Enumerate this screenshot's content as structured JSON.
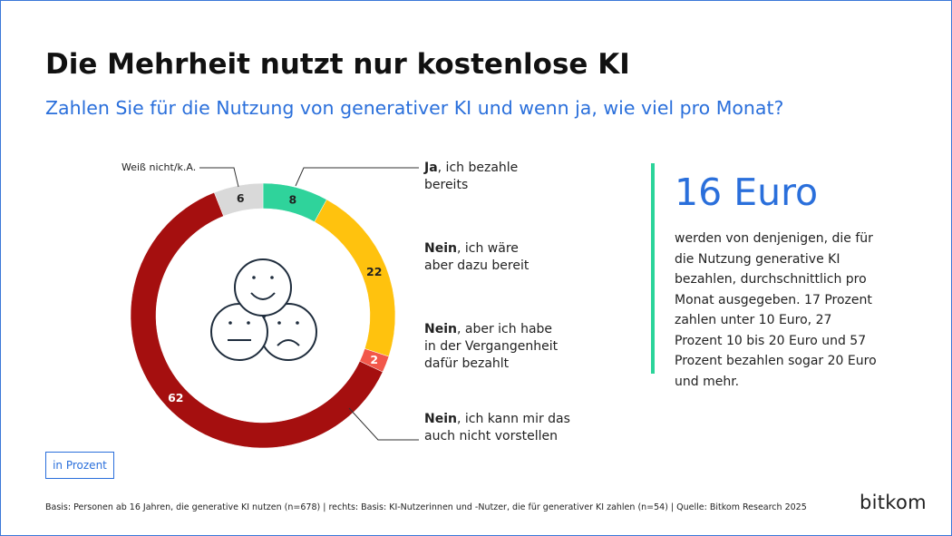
{
  "header": {
    "title": "Die Mehrheit nutzt nur kostenlose KI",
    "subtitle": "Zahlen Sie für die Nutzung von generativer KI und wenn ja, wie viel pro Monat?"
  },
  "chart_data": {
    "type": "pie",
    "variant": "donut",
    "unit": "in Prozent",
    "slices": [
      {
        "label_bold": "Ja",
        "label_rest": ", ich bezahle bereits",
        "value": 8,
        "color": "#2fd39b"
      },
      {
        "label_bold": "Nein",
        "label_rest": ", ich wäre aber dazu bereit",
        "value": 22,
        "color": "#ffc20e"
      },
      {
        "label_bold": "Nein",
        "label_rest": ", aber ich habe in der Vergangenheit dafür bezahlt",
        "value": 2,
        "color": "#f2574a"
      },
      {
        "label_bold": "Nein",
        "label_rest": ", ich kann mir das auch nicht vorstellen",
        "value": 62,
        "color": "#a50f0f"
      },
      {
        "label_bold": "",
        "label_rest": "Weiß nicht/k.A.",
        "value": 6,
        "color": "#d9d9d9"
      }
    ]
  },
  "labels": {
    "ja_bold": "Ja",
    "ja_rest_1": ", ich bezahle",
    "ja_rest_2": "bereits",
    "nein1_bold": "Nein",
    "nein1_rest_1": ", ich wäre",
    "nein1_rest_2": "aber dazu bereit",
    "nein2_bold": "Nein",
    "nein2_rest_1": ", aber ich habe",
    "nein2_rest_2": "in der Vergangenheit",
    "nein2_rest_3": "dafür bezahlt",
    "nein3_bold": "Nein",
    "nein3_rest_1": ", ich kann mir das",
    "nein3_rest_2": "auch nicht vorstellen",
    "dontknow": "Weiß nicht/k.A."
  },
  "info": {
    "big_value": "16 Euro",
    "text": "werden von denjenigen, die für die Nutzung generative KI bezahlen, durchschnittlich pro Monat ausgegeben. 17 Prozent zahlen unter 10 Euro, 27 Prozent 10 bis 20 Euro und 57 Prozent bezahlen sogar 20 Euro und mehr.",
    "accent_color": "#2bd49a"
  },
  "unit_box": "in Prozent",
  "footnote": "Basis: Personen ab 16 Jahren, die generative KI nutzen (n=678) | rechts: Basis: KI-Nutzerinnen und -Nutzer, die für generativer KI zahlen (n=54) | Quelle: Bitkom Research 2025",
  "brand": "bitkom",
  "colors": {
    "accent_blue": "#2a6fdb",
    "frame": "#3b78d8"
  }
}
